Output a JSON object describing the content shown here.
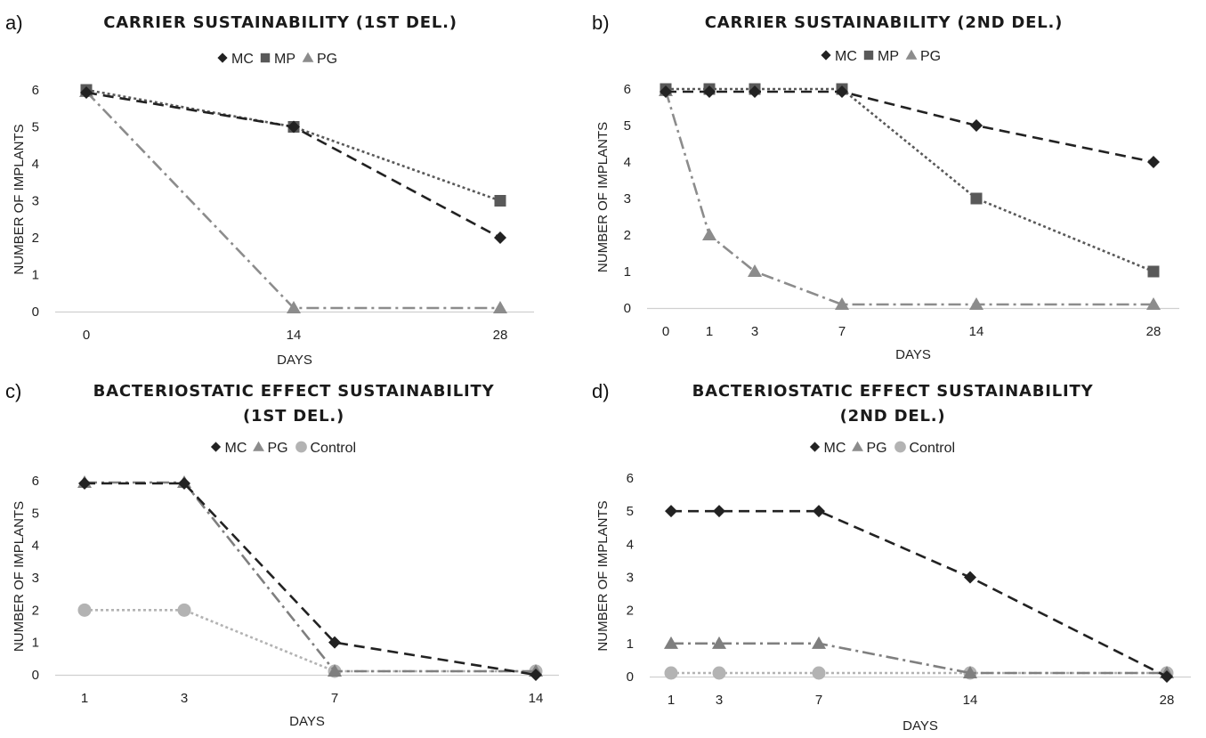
{
  "chart_data": [
    {
      "letter": "a)",
      "type": "line",
      "title": [
        "CARRIER SUSTAINABILITY (1ST DEL.)"
      ],
      "xlabel": "DAYS",
      "ylabel": "NUMBER OF IMPLANTS",
      "ylim": [
        0,
        6
      ],
      "yticks": [
        "0",
        "1",
        "2",
        "3",
        "4",
        "5",
        "6"
      ],
      "x": [
        0,
        14,
        28
      ],
      "xtick_labels": [
        "0",
        "14",
        "28"
      ],
      "series": [
        {
          "name": "MC",
          "marker": "diamond",
          "dash": "dash",
          "color": "#222222",
          "values": [
            6,
            5,
            2
          ]
        },
        {
          "name": "MP",
          "marker": "square",
          "dash": "dot",
          "color": "#595959",
          "values": [
            6,
            5,
            3
          ]
        },
        {
          "name": "PG",
          "marker": "triangle",
          "dash": "dashdot",
          "color": "#8c8c8c",
          "values": [
            6,
            0,
            0
          ]
        }
      ]
    },
    {
      "letter": "b)",
      "type": "line",
      "title": [
        "CARRIER SUSTAINABILITY (2ND DEL.)"
      ],
      "xlabel": "DAYS",
      "ylabel": "NUMBER OF IMPLANTS",
      "ylim": [
        0,
        6
      ],
      "yticks": [
        "0",
        "1",
        "2",
        "3",
        "4",
        "5",
        "6"
      ],
      "x": [
        0,
        1,
        3,
        7,
        14,
        28
      ],
      "xtick_labels": [
        "0",
        "1",
        "3",
        "7",
        "14",
        "28"
      ],
      "series": [
        {
          "name": "MC",
          "marker": "diamond",
          "dash": "dash",
          "color": "#222222",
          "values": [
            6,
            6,
            6,
            6,
            5,
            4
          ]
        },
        {
          "name": "MP",
          "marker": "square",
          "dash": "dot",
          "color": "#595959",
          "values": [
            6,
            6,
            6,
            6,
            3,
            1
          ]
        },
        {
          "name": "PG",
          "marker": "triangle",
          "dash": "dashdot",
          "color": "#8c8c8c",
          "values": [
            6,
            2,
            1,
            0,
            0,
            0
          ]
        }
      ]
    },
    {
      "letter": "c)",
      "type": "line",
      "title": [
        "BACTERIOSTATIC EFFECT SUSTAINABILITY",
        "(1ST DEL.)"
      ],
      "xlabel": "DAYS",
      "ylabel": "NUMBER OF IMPLANTS",
      "ylim": [
        0,
        6
      ],
      "yticks": [
        "0",
        "1",
        "2",
        "3",
        "4",
        "5",
        "6"
      ],
      "x": [
        1,
        3,
        7,
        14
      ],
      "xtick_labels": [
        "1",
        "3",
        "7",
        "14"
      ],
      "series": [
        {
          "name": "MC",
          "marker": "diamond",
          "dash": "dash",
          "color": "#222222",
          "values": [
            6,
            6,
            1,
            0
          ]
        },
        {
          "name": "PG",
          "marker": "triangle",
          "dash": "dashdot",
          "color": "#7f7f7f",
          "values": [
            6,
            6,
            0,
            0
          ]
        },
        {
          "name": "Control",
          "marker": "circle",
          "dash": "dot",
          "color": "#b3b3b3",
          "values": [
            2,
            2,
            0,
            0
          ]
        }
      ]
    },
    {
      "letter": "d)",
      "type": "line",
      "title": [
        "BACTERIOSTATIC EFFECT SUSTAINABILITY",
        "(2ND DEL.)"
      ],
      "xlabel": "DAYS",
      "ylabel": "NUMBER OF IMPLANTS",
      "ylim": [
        0,
        6
      ],
      "yticks": [
        "0",
        "1",
        "2",
        "3",
        "4",
        "5",
        "6"
      ],
      "x": [
        1,
        3,
        7,
        14,
        28
      ],
      "xtick_labels": [
        "1",
        "3",
        "7",
        "14",
        "28"
      ],
      "series": [
        {
          "name": "MC",
          "marker": "diamond",
          "dash": "dash",
          "color": "#222222",
          "values": [
            5,
            5,
            5,
            3,
            0
          ]
        },
        {
          "name": "PG",
          "marker": "triangle",
          "dash": "dashdot",
          "color": "#7f7f7f",
          "values": [
            1,
            1,
            1,
            0,
            0
          ]
        },
        {
          "name": "Control",
          "marker": "circle",
          "dash": "dot",
          "color": "#b3b3b3",
          "values": [
            0,
            0,
            0,
            0,
            0
          ]
        }
      ]
    }
  ]
}
